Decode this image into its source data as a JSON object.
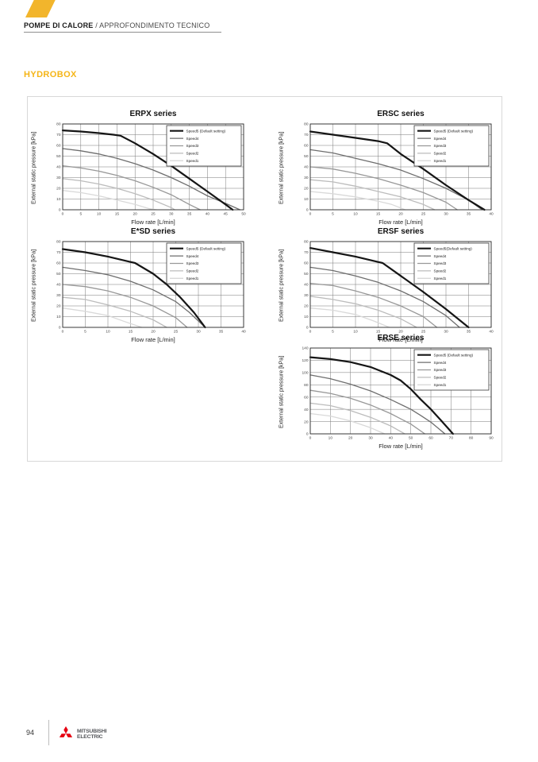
{
  "header": {
    "category": "POMPE DI CALORE",
    "subtitle": " / APPROFONDIMENTO TECNICO"
  },
  "section_title": "HYDROBOX",
  "footer": {
    "page_number": "94",
    "brand_line1": "MITSUBISHI",
    "brand_line2": "ELECTRIC"
  },
  "colors": {
    "accent_yellow": "#F2B52C",
    "heading_yellow": "#F5B517",
    "brand_red": "#E60012",
    "speed5": "#151515",
    "speed4": "#6e6e6e",
    "speed3": "#989898",
    "speed2": "#bcbcbc",
    "speed1": "#d9d9d9"
  },
  "chart_data": [
    {
      "type": "line",
      "title": "ERPX series",
      "xlabel": "Flow rate [L/min]",
      "ylabel": "External static pressure [kPa]",
      "xlim": [
        0,
        50
      ],
      "xtick_step": 5,
      "ylim": [
        0,
        80
      ],
      "ytick_step": 10,
      "grid": true,
      "legend_position": "top-right",
      "series": [
        {
          "name": "Speed5 (Default setting)",
          "color": "#151515",
          "width": 2.2,
          "points": [
            [
              0,
              74
            ],
            [
              5,
              73
            ],
            [
              10,
              71.5
            ],
            [
              14,
              70
            ],
            [
              16,
              69
            ],
            [
              20,
              62
            ],
            [
              25,
              52
            ],
            [
              30,
              41
            ],
            [
              35,
              29
            ],
            [
              40,
              17
            ],
            [
              45,
              5
            ],
            [
              47,
              0
            ]
          ]
        },
        {
          "name": "Speed4",
          "color": "#6e6e6e",
          "width": 1.3,
          "points": [
            [
              0,
              57
            ],
            [
              5,
              55
            ],
            [
              10,
              52
            ],
            [
              15,
              48
            ],
            [
              20,
              43
            ],
            [
              25,
              37
            ],
            [
              30,
              30
            ],
            [
              35,
              22
            ],
            [
              40,
              13
            ],
            [
              45,
              6
            ],
            [
              49,
              0
            ]
          ]
        },
        {
          "name": "Speed3",
          "color": "#989898",
          "width": 1.3,
          "points": [
            [
              0,
              41
            ],
            [
              5,
              39
            ],
            [
              10,
              36
            ],
            [
              15,
              32
            ],
            [
              20,
              27
            ],
            [
              25,
              21
            ],
            [
              30,
              14
            ],
            [
              35,
              5
            ],
            [
              38,
              0
            ]
          ]
        },
        {
          "name": "Speed2",
          "color": "#bcbcbc",
          "width": 1.3,
          "points": [
            [
              0,
              29
            ],
            [
              5,
              27
            ],
            [
              10,
              24
            ],
            [
              15,
              20
            ],
            [
              20,
              15
            ],
            [
              25,
              9
            ],
            [
              30,
              2
            ],
            [
              31,
              0
            ]
          ]
        },
        {
          "name": "Speed1",
          "color": "#d9d9d9",
          "width": 1.3,
          "points": [
            [
              0,
              18
            ],
            [
              5,
              16
            ],
            [
              10,
              13
            ],
            [
              15,
              9
            ],
            [
              20,
              5
            ],
            [
              24,
              1
            ],
            [
              26,
              0
            ]
          ]
        }
      ]
    },
    {
      "type": "line",
      "title": "ERSC series",
      "xlabel": "Flow rate [L/min]",
      "ylabel": "External static pressure [kPa]",
      "xlim": [
        0,
        40
      ],
      "xtick_step": 5,
      "ylim": [
        0,
        80
      ],
      "ytick_step": 10,
      "grid": true,
      "legend_position": "top-right",
      "series": [
        {
          "name": "Speed5 (Default setting)",
          "color": "#151515",
          "width": 2.2,
          "points": [
            [
              0,
              73
            ],
            [
              5,
              70
            ],
            [
              10,
              67
            ],
            [
              15,
              64
            ],
            [
              17,
              62
            ],
            [
              20,
              52
            ],
            [
              25,
              38
            ],
            [
              30,
              23
            ],
            [
              35,
              9
            ],
            [
              38.5,
              0
            ]
          ]
        },
        {
          "name": "Speed4",
          "color": "#6e6e6e",
          "width": 1.3,
          "points": [
            [
              0,
              56
            ],
            [
              5,
              53
            ],
            [
              10,
              48
            ],
            [
              15,
              43
            ],
            [
              20,
              37
            ],
            [
              25,
              29
            ],
            [
              30,
              20
            ],
            [
              35,
              9
            ],
            [
              38,
              0
            ]
          ]
        },
        {
          "name": "Speed3",
          "color": "#989898",
          "width": 1.3,
          "points": [
            [
              0,
              40
            ],
            [
              5,
              38
            ],
            [
              10,
              34
            ],
            [
              15,
              29
            ],
            [
              20,
              23
            ],
            [
              25,
              16
            ],
            [
              30,
              7
            ],
            [
              32.5,
              0
            ]
          ]
        },
        {
          "name": "Speed2",
          "color": "#bcbcbc",
          "width": 1.3,
          "points": [
            [
              0,
              28
            ],
            [
              5,
              26
            ],
            [
              10,
              22
            ],
            [
              15,
              17
            ],
            [
              20,
              12
            ],
            [
              25,
              5
            ],
            [
              27.5,
              0
            ]
          ]
        },
        {
          "name": "Speed1",
          "color": "#d9d9d9",
          "width": 1.3,
          "points": [
            [
              0,
              17
            ],
            [
              5,
              15
            ],
            [
              10,
              12
            ],
            [
              15,
              8
            ],
            [
              18,
              5
            ],
            [
              21,
              0
            ]
          ]
        }
      ]
    },
    {
      "type": "line",
      "title": "E*SD series",
      "xlabel": "Flow rate [L/min]",
      "ylabel": "External static pressure [kPa]",
      "xlim": [
        0,
        40
      ],
      "xtick_step": 5,
      "ylim": [
        0,
        80
      ],
      "ytick_step": 10,
      "grid": true,
      "legend_position": "top-right",
      "series": [
        {
          "name": "Speed5 (Default setting)",
          "color": "#151515",
          "width": 2.2,
          "points": [
            [
              0,
              73
            ],
            [
              5,
              70
            ],
            [
              10,
              66
            ],
            [
              15,
              61
            ],
            [
              16,
              60
            ],
            [
              20,
              50
            ],
            [
              23,
              40
            ],
            [
              26,
              28
            ],
            [
              29,
              14
            ],
            [
              31.5,
              0
            ]
          ]
        },
        {
          "name": "Speed4",
          "color": "#6e6e6e",
          "width": 1.3,
          "points": [
            [
              0,
              56
            ],
            [
              5,
              53
            ],
            [
              10,
              49
            ],
            [
              15,
              43
            ],
            [
              20,
              35
            ],
            [
              25,
              24
            ],
            [
              28,
              14
            ],
            [
              31.5,
              0
            ]
          ]
        },
        {
          "name": "Speed3",
          "color": "#989898",
          "width": 1.3,
          "points": [
            [
              0,
              40
            ],
            [
              5,
              38
            ],
            [
              10,
              34
            ],
            [
              15,
              28
            ],
            [
              20,
              20
            ],
            [
              25,
              9
            ],
            [
              27.5,
              0
            ]
          ]
        },
        {
          "name": "Speed2",
          "color": "#bcbcbc",
          "width": 1.3,
          "points": [
            [
              0,
              28
            ],
            [
              5,
              26
            ],
            [
              10,
              21
            ],
            [
              15,
              15
            ],
            [
              20,
              7
            ],
            [
              23,
              0
            ]
          ]
        },
        {
          "name": "Speed1",
          "color": "#d9d9d9",
          "width": 1.3,
          "points": [
            [
              0,
              18
            ],
            [
              5,
              15
            ],
            [
              10,
              11
            ],
            [
              14,
              5
            ],
            [
              17.5,
              0
            ]
          ]
        }
      ]
    },
    {
      "type": "line",
      "title": "ERSF series",
      "xlabel": "Flow rate [L/min]",
      "ylabel": "External static pressure [kPa]",
      "xlim": [
        0,
        40
      ],
      "xtick_step": 5,
      "ylim": [
        0,
        80
      ],
      "ytick_step": 10,
      "grid": true,
      "legend_position": "top-right",
      "series": [
        {
          "name": "Speed5(Default setting)",
          "color": "#151515",
          "width": 2.2,
          "points": [
            [
              0,
              74
            ],
            [
              5,
              70
            ],
            [
              10,
              66
            ],
            [
              15,
              61
            ],
            [
              16,
              60
            ],
            [
              20,
              48
            ],
            [
              25,
              33
            ],
            [
              30,
              17
            ],
            [
              35,
              0
            ]
          ]
        },
        {
          "name": "Speed4",
          "color": "#6e6e6e",
          "width": 1.3,
          "points": [
            [
              0,
              56
            ],
            [
              5,
              53
            ],
            [
              10,
              48
            ],
            [
              15,
              42
            ],
            [
              20,
              34
            ],
            [
              25,
              24
            ],
            [
              30,
              11
            ],
            [
              33,
              0
            ]
          ]
        },
        {
          "name": "Speed3",
          "color": "#989898",
          "width": 1.3,
          "points": [
            [
              0,
              41
            ],
            [
              5,
              39
            ],
            [
              10,
              34
            ],
            [
              15,
              28
            ],
            [
              20,
              20
            ],
            [
              25,
              10
            ],
            [
              28,
              0
            ]
          ]
        },
        {
          "name": "Speed2",
          "color": "#bcbcbc",
          "width": 1.3,
          "points": [
            [
              0,
              29
            ],
            [
              5,
              26
            ],
            [
              10,
              22
            ],
            [
              15,
              16
            ],
            [
              20,
              8
            ],
            [
              23.5,
              0
            ]
          ]
        },
        {
          "name": "Speed1",
          "color": "#d9d9d9",
          "width": 1.3,
          "points": [
            [
              0,
              18
            ],
            [
              5,
              16
            ],
            [
              10,
              12
            ],
            [
              14,
              6
            ],
            [
              17.5,
              0
            ]
          ]
        }
      ]
    },
    {
      "type": "line",
      "title": "ERSE series",
      "xlabel": "Flow rate [L/min]",
      "ylabel": "External static pressure [kPa]",
      "xlim": [
        0,
        90
      ],
      "xtick_step": 10,
      "ylim": [
        0,
        140
      ],
      "ytick_step": 20,
      "grid": true,
      "legend_position": "top-right",
      "series": [
        {
          "name": "Speed5 (Default setting)",
          "color": "#151515",
          "width": 2.2,
          "points": [
            [
              0,
              125
            ],
            [
              10,
              122
            ],
            [
              20,
              117
            ],
            [
              30,
              109
            ],
            [
              40,
              96
            ],
            [
              45,
              87
            ],
            [
              50,
              73
            ],
            [
              55,
              56
            ],
            [
              60,
              40
            ],
            [
              65,
              22
            ],
            [
              71,
              0
            ]
          ]
        },
        {
          "name": "Speed4",
          "color": "#6e6e6e",
          "width": 1.3,
          "points": [
            [
              0,
              96
            ],
            [
              10,
              90
            ],
            [
              20,
              81
            ],
            [
              30,
              70
            ],
            [
              40,
              56
            ],
            [
              50,
              40
            ],
            [
              55,
              30
            ],
            [
              60,
              19
            ],
            [
              67,
              0
            ]
          ]
        },
        {
          "name": "Speed3",
          "color": "#989898",
          "width": 1.3,
          "points": [
            [
              0,
              71
            ],
            [
              10,
              66
            ],
            [
              20,
              58
            ],
            [
              30,
              47
            ],
            [
              40,
              33
            ],
            [
              50,
              16
            ],
            [
              57,
              0
            ]
          ]
        },
        {
          "name": "Speed2",
          "color": "#bcbcbc",
          "width": 1.3,
          "points": [
            [
              0,
              50
            ],
            [
              10,
              46
            ],
            [
              20,
              38
            ],
            [
              30,
              27
            ],
            [
              40,
              13
            ],
            [
              47,
              0
            ]
          ]
        },
        {
          "name": "Speed1",
          "color": "#d9d9d9",
          "width": 1.3,
          "points": [
            [
              0,
              33
            ],
            [
              10,
              29
            ],
            [
              20,
              21
            ],
            [
              30,
              10
            ],
            [
              37,
              0
            ]
          ]
        }
      ]
    }
  ]
}
